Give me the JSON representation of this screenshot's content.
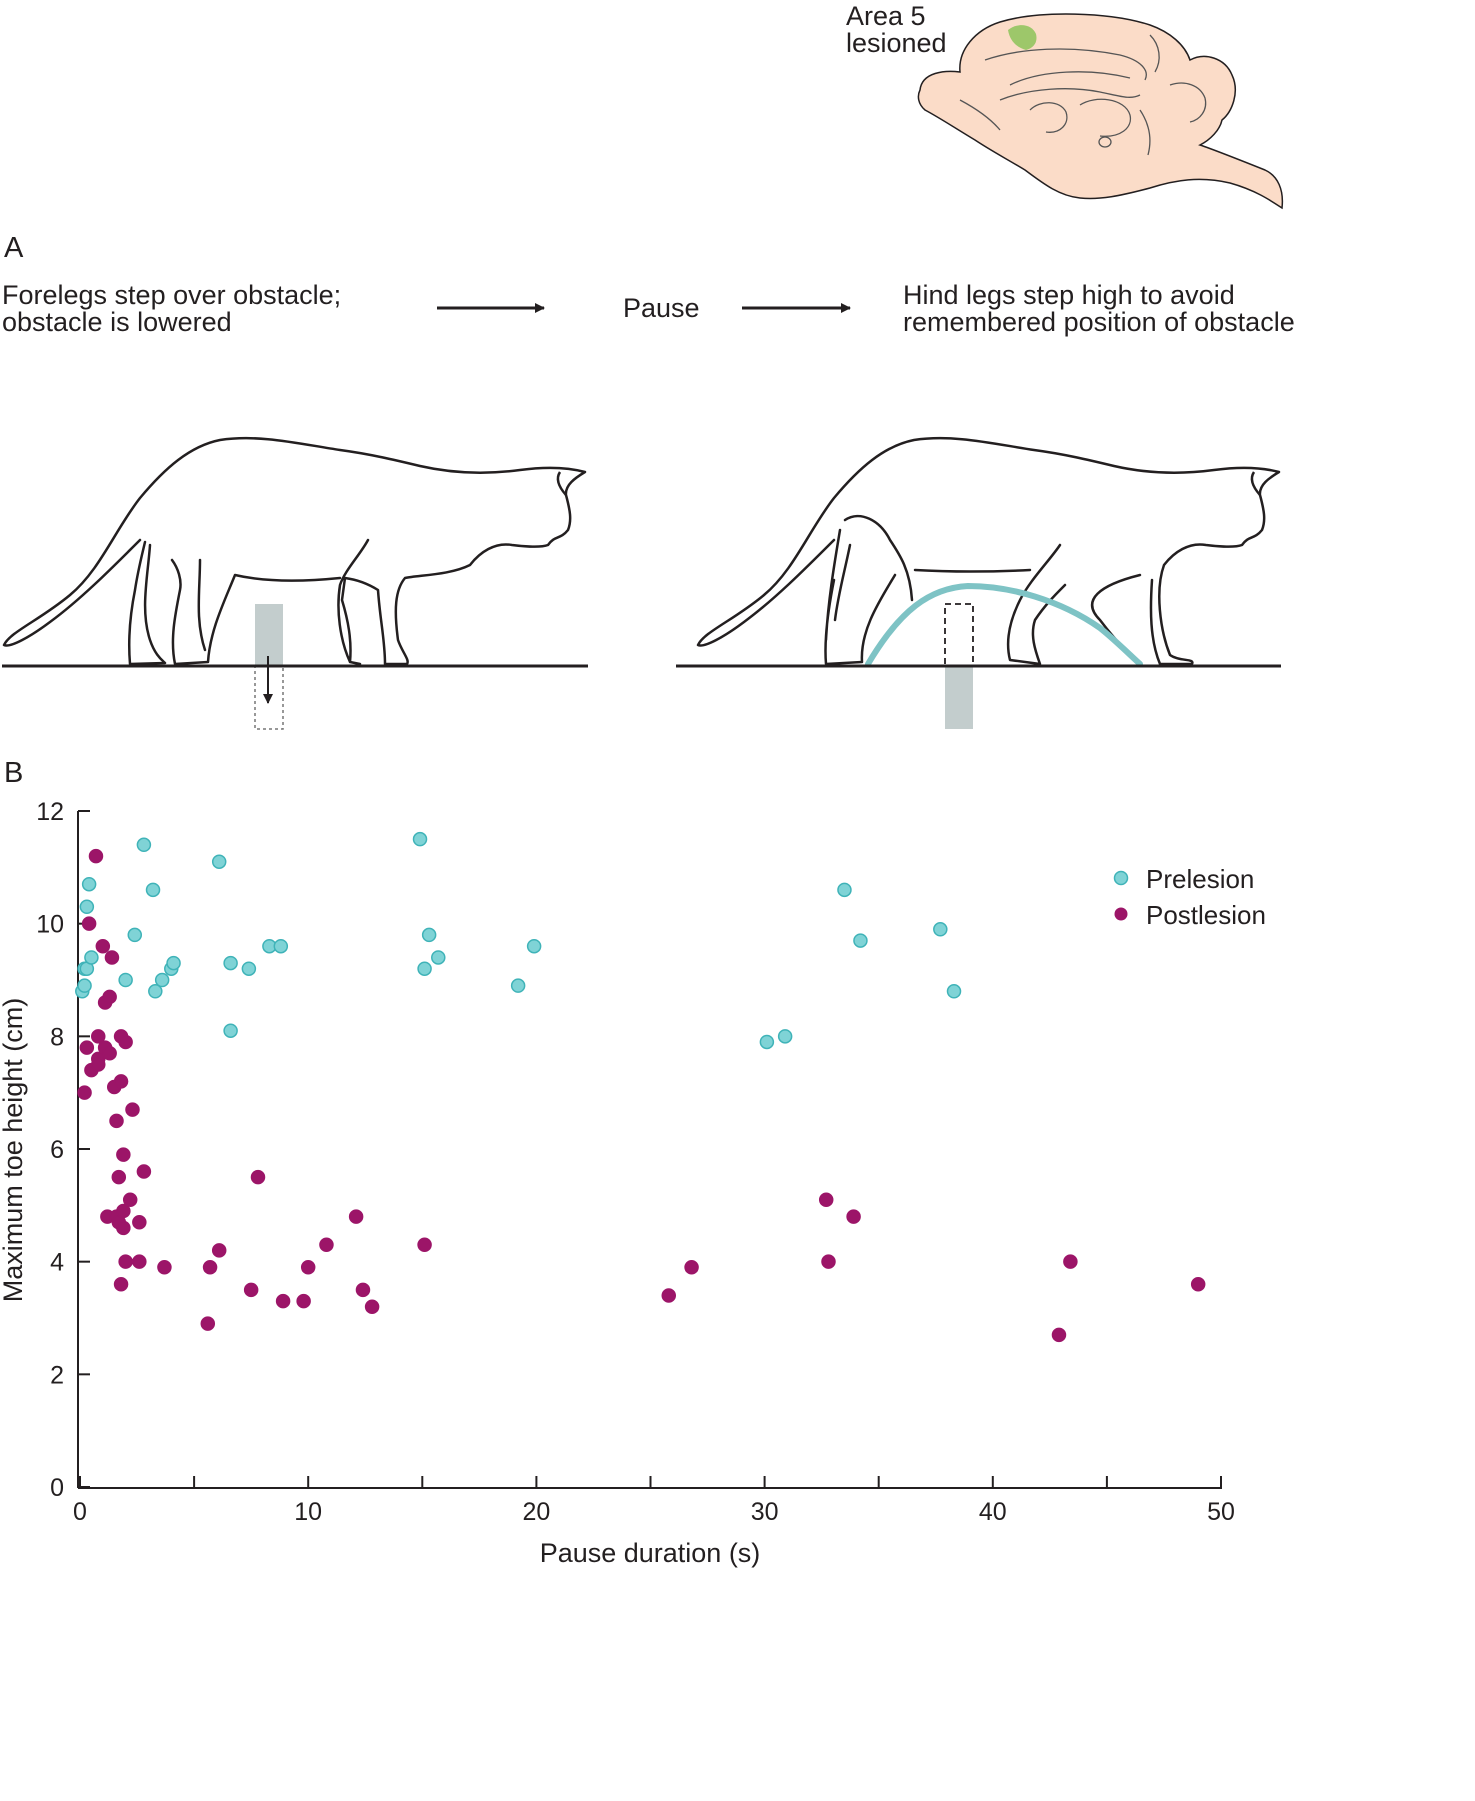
{
  "brain": {
    "label_line1": "Area 5",
    "label_line2": "lesioned",
    "colors": {
      "tissue": "#fbdcc8",
      "lesion": "#9dc76a",
      "outline": "#231f20"
    }
  },
  "panel_a": {
    "letter": "A",
    "step1_line1": "Forelegs step over obstacle;",
    "step1_line2": "obstacle is lowered",
    "step2": "Pause",
    "step3_line1": "Hind legs step high to avoid",
    "step3_line2": "remembered position of obstacle",
    "colors": {
      "obstacle": "#c3cdcd",
      "trajectory": "#7ec3c5"
    }
  },
  "panel_b": {
    "letter": "B",
    "chart_data": {
      "type": "scatter",
      "xlabel": "Pause duration (s)",
      "ylabel": "Maximum toe height (cm)",
      "xlim": [
        0,
        50
      ],
      "ylim": [
        0,
        12
      ],
      "x_ticks": [
        0,
        10,
        20,
        30,
        40,
        50
      ],
      "y_ticks": [
        0,
        2,
        4,
        6,
        8,
        10,
        12
      ],
      "legend_position": "top-right",
      "grid": false,
      "series": [
        {
          "name": "Prelesion",
          "color": "#7fd3d6",
          "stroke": "#3fb3b8",
          "points": [
            [
              0.1,
              8.8
            ],
            [
              0.2,
              8.9
            ],
            [
              0.2,
              9.2
            ],
            [
              0.3,
              9.2
            ],
            [
              0.3,
              10.3
            ],
            [
              0.4,
              10.7
            ],
            [
              0.5,
              9.4
            ],
            [
              2.0,
              9.0
            ],
            [
              2.4,
              9.8
            ],
            [
              2.8,
              11.4
            ],
            [
              3.2,
              10.6
            ],
            [
              3.3,
              8.8
            ],
            [
              3.6,
              9.0
            ],
            [
              4.0,
              9.2
            ],
            [
              4.1,
              9.3
            ],
            [
              6.1,
              11.1
            ],
            [
              6.6,
              9.3
            ],
            [
              6.6,
              8.1
            ],
            [
              7.4,
              9.2
            ],
            [
              8.3,
              9.6
            ],
            [
              8.8,
              9.6
            ],
            [
              14.9,
              11.5
            ],
            [
              15.1,
              9.2
            ],
            [
              15.3,
              9.8
            ],
            [
              15.7,
              9.4
            ],
            [
              19.2,
              8.9
            ],
            [
              19.9,
              9.6
            ],
            [
              30.1,
              7.9
            ],
            [
              30.9,
              8.0
            ],
            [
              33.5,
              10.6
            ],
            [
              34.2,
              9.7
            ],
            [
              37.7,
              9.9
            ],
            [
              38.3,
              8.8
            ]
          ]
        },
        {
          "name": "Postlesion",
          "color": "#9c1568",
          "stroke": "#9c1568",
          "points": [
            [
              0.2,
              7.0
            ],
            [
              0.3,
              7.8
            ],
            [
              0.4,
              10.0
            ],
            [
              0.5,
              7.4
            ],
            [
              0.7,
              11.2
            ],
            [
              0.8,
              8.0
            ],
            [
              0.8,
              7.6
            ],
            [
              0.8,
              7.5
            ],
            [
              1.0,
              9.6
            ],
            [
              1.1,
              8.6
            ],
            [
              1.1,
              7.8
            ],
            [
              1.2,
              4.8
            ],
            [
              1.3,
              7.7
            ],
            [
              1.3,
              8.7
            ],
            [
              1.4,
              9.4
            ],
            [
              1.5,
              7.1
            ],
            [
              1.6,
              4.8
            ],
            [
              1.6,
              6.5
            ],
            [
              1.7,
              5.5
            ],
            [
              1.7,
              4.7
            ],
            [
              1.8,
              8.0
            ],
            [
              1.8,
              7.2
            ],
            [
              1.8,
              3.6
            ],
            [
              1.9,
              4.9
            ],
            [
              1.9,
              4.6
            ],
            [
              1.9,
              5.9
            ],
            [
              2.0,
              4.0
            ],
            [
              2.0,
              7.9
            ],
            [
              2.2,
              5.1
            ],
            [
              2.3,
              6.7
            ],
            [
              2.6,
              4.7
            ],
            [
              2.6,
              4.0
            ],
            [
              2.8,
              5.6
            ],
            [
              3.7,
              3.9
            ],
            [
              5.6,
              2.9
            ],
            [
              5.7,
              3.9
            ],
            [
              6.1,
              4.2
            ],
            [
              7.5,
              3.5
            ],
            [
              7.8,
              5.5
            ],
            [
              8.9,
              3.3
            ],
            [
              9.8,
              3.3
            ],
            [
              10.0,
              3.9
            ],
            [
              10.8,
              4.3
            ],
            [
              12.1,
              4.8
            ],
            [
              12.4,
              3.5
            ],
            [
              12.8,
              3.2
            ],
            [
              15.1,
              4.3
            ],
            [
              25.8,
              3.4
            ],
            [
              26.8,
              3.9
            ],
            [
              32.7,
              5.1
            ],
            [
              32.8,
              4.0
            ],
            [
              33.9,
              4.8
            ],
            [
              42.9,
              2.7
            ],
            [
              43.4,
              4.0
            ],
            [
              49.0,
              3.6
            ]
          ]
        }
      ]
    }
  }
}
